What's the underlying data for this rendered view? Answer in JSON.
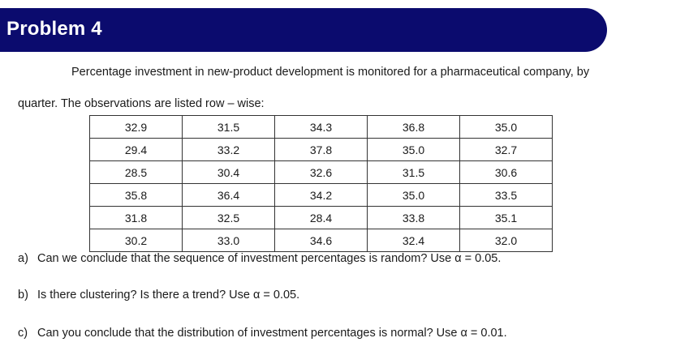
{
  "header": {
    "title": "Problem 4"
  },
  "intro": {
    "line1": "Percentage investment in new-product development is monitored for a pharmaceutical company, by",
    "line2": "quarter. The observations are listed row – wise:"
  },
  "table": {
    "rows": [
      [
        "32.9",
        "31.5",
        "34.3",
        "36.8",
        "35.0"
      ],
      [
        "29.4",
        "33.2",
        "37.8",
        "35.0",
        "32.7"
      ],
      [
        "28.5",
        "30.4",
        "32.6",
        "31.5",
        "30.6"
      ],
      [
        "35.8",
        "36.4",
        "34.2",
        "35.0",
        "33.5"
      ],
      [
        "31.8",
        "32.5",
        "28.4",
        "33.8",
        "35.1"
      ],
      [
        "30.2",
        "33.0",
        "34.6",
        "32.4",
        "32.0"
      ]
    ]
  },
  "questions": [
    {
      "letter": "a)",
      "text": "Can we conclude that the sequence of investment percentages is random? Use α = 0.05."
    },
    {
      "letter": "b)",
      "text": "Is there clustering? Is there a trend? Use α = 0.05."
    },
    {
      "letter": "c)",
      "text": "Can you conclude that the distribution of investment percentages is normal? Use α = 0.01."
    }
  ],
  "colors": {
    "header_band": "#0b0b6e",
    "header_text": "#ffffff"
  }
}
